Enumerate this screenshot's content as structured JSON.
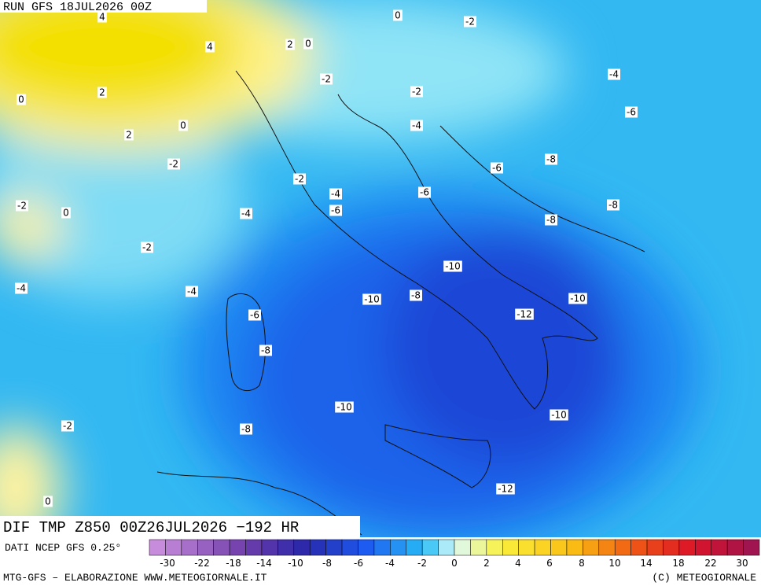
{
  "header": {
    "run": "RUN GFS 18JUL2026 00Z"
  },
  "contour_labels": [
    4,
    0,
    -2,
    4,
    2,
    0,
    -2,
    -4,
    0,
    2,
    -2,
    -6,
    0,
    -4,
    2,
    -2,
    -8,
    -6,
    -2,
    -4,
    -6,
    -2,
    0,
    -6,
    -4,
    -8,
    -8,
    -2,
    -10,
    -4,
    -4,
    -10,
    -8,
    -10,
    -12,
    -6,
    -8,
    -10,
    -10,
    -2,
    -8,
    -12,
    0
  ],
  "footer": {
    "title": "DIF TMP Z850 00Z26JUL2026 −192 HR",
    "source": "DATI NCEP GFS 0.25°",
    "credit": "MTG-GFS – ELABORAZIONE WWW.METEOGIORNALE.IT",
    "copyright": "(C) METEOGIORNALE"
  },
  "colorbar": {
    "labels": [
      -30,
      -22,
      -18,
      -14,
      -10,
      -8,
      -6,
      -4,
      -2,
      0,
      2,
      4,
      6,
      8,
      10,
      14,
      18,
      22,
      30
    ]
  }
}
